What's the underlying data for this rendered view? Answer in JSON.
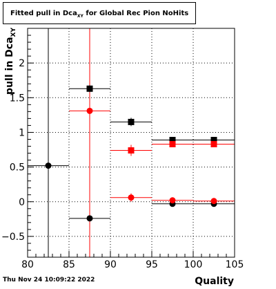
{
  "title": {
    "prefix": "Fitted pull in Dca",
    "subscript": "XY",
    "suffix": " for Global Rec Pion NoHits"
  },
  "footer": {
    "timestamp": "Thu Nov 24 10:09:22 2022"
  },
  "chart_data": {
    "type": "scatter",
    "title": "Fitted pull in Dca_XY for Global Rec Pion NoHits",
    "xlabel": "Quality",
    "ylabel": "pull in Dca",
    "ylabel_subscript": "XY",
    "xlim": [
      80,
      105
    ],
    "ylim": [
      -0.8,
      2.5
    ],
    "xticks": [
      80,
      85,
      90,
      95,
      100,
      105
    ],
    "xtick_labels": [
      "80",
      "85",
      "90",
      "95",
      "100",
      "105"
    ],
    "yticks": [
      -0.5,
      0,
      0.5,
      1,
      1.5,
      2
    ],
    "ytick_labels": [
      "−0.5",
      "0",
      "0.5",
      "1",
      "1.5",
      "2"
    ],
    "grid": true,
    "colors": {
      "black": "#000000",
      "red": "#ff0000"
    },
    "series": [
      {
        "color": "#000000",
        "marker": "circle",
        "points": [
          {
            "x": 82.5,
            "y": 0.52,
            "xerr": 2.5,
            "yerr": 0
          },
          {
            "x": 87.5,
            "y": -0.24,
            "xerr": 2.5,
            "yerr": 0.03
          },
          {
            "x": 97.5,
            "y": -0.03,
            "xerr": 2.5,
            "yerr": 0.01
          },
          {
            "x": 102.5,
            "y": -0.03,
            "xerr": 2.5,
            "yerr": 0.01
          }
        ]
      },
      {
        "color": "#000000",
        "marker": "square",
        "points": [
          {
            "x": 87.5,
            "y": 1.63,
            "xerr": 2.5,
            "yerr": 0.05
          },
          {
            "x": 92.5,
            "y": 1.15,
            "xerr": 2.5,
            "yerr": 0.06
          },
          {
            "x": 97.5,
            "y": 0.89,
            "xerr": 2.5,
            "yerr": 0.02
          },
          {
            "x": 102.5,
            "y": 0.89,
            "xerr": 2.5,
            "yerr": 0.02
          }
        ]
      },
      {
        "color": "#ff0000",
        "marker": "circle",
        "points": [
          {
            "x": 87.5,
            "y": 1.31,
            "xerr": 2.5,
            "yerr": 0.04
          },
          {
            "x": 92.5,
            "y": 0.06,
            "xerr": 2.5,
            "yerr": 0.06
          },
          {
            "x": 97.5,
            "y": 0.02,
            "xerr": 2.5,
            "yerr": 0.02
          },
          {
            "x": 102.5,
            "y": 0.01,
            "xerr": 2.5,
            "yerr": 0.02
          }
        ]
      },
      {
        "color": "#ff0000",
        "marker": "square",
        "points": [
          {
            "x": 92.5,
            "y": 0.74,
            "xerr": 2.5,
            "yerr": 0.08
          },
          {
            "x": 97.5,
            "y": 0.83,
            "xerr": 2.5,
            "yerr": 0.02
          },
          {
            "x": 102.5,
            "y": 0.83,
            "xerr": 2.5,
            "yerr": 0.02
          }
        ]
      }
    ],
    "vertical_lines": [
      {
        "x": 82.5,
        "color": "#000000"
      },
      {
        "x": 87.5,
        "color": "#ff0000"
      }
    ]
  }
}
